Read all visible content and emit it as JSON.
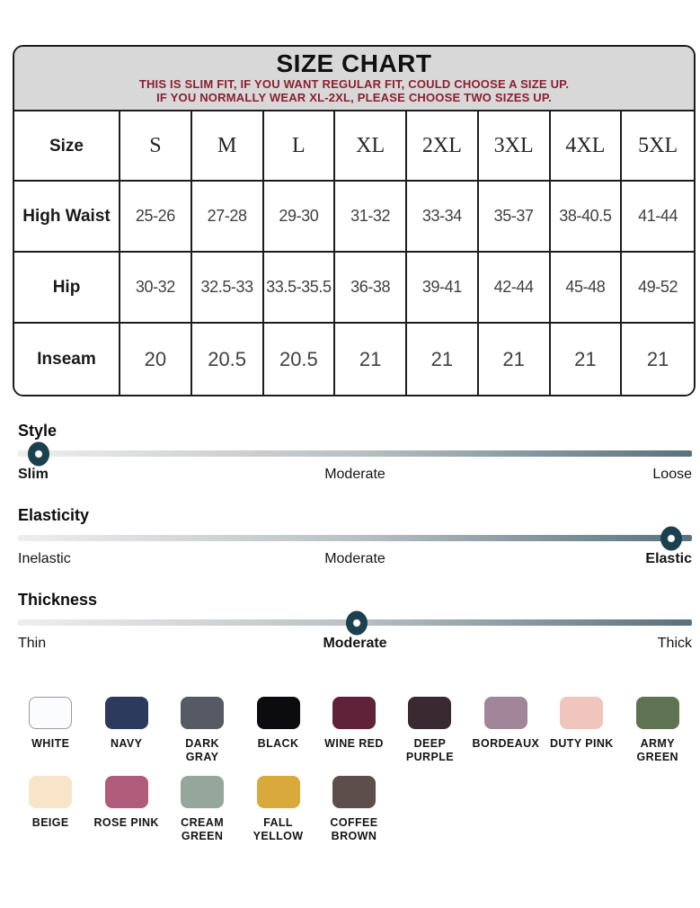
{
  "header": {
    "title": "SIZE CHART",
    "note_line1": "THIS IS SLIM FIT, IF YOU WANT REGULAR FIT, COULD CHOOSE A SIZE UP.",
    "note_line2": "IF YOU NORMALLY WEAR XL-2XL, PLEASE CHOOSE TWO SIZES UP."
  },
  "size_table": {
    "header_label": "Size",
    "sizes": [
      "S",
      "M",
      "L",
      "XL",
      "2XL",
      "3XL",
      "4XL",
      "5XL"
    ],
    "rows": [
      {
        "label": "High Waist",
        "values": [
          "25-26",
          "27-28",
          "29-30",
          "31-32",
          "33-34",
          "35-37",
          "38-40.5",
          "41-44"
        ]
      },
      {
        "label": "Hip",
        "values": [
          "30-32",
          "32.5-33",
          "33.5-35.5",
          "36-38",
          "39-41",
          "42-44",
          "45-48",
          "49-52"
        ]
      },
      {
        "label": "Inseam",
        "values": [
          "20",
          "20.5",
          "20.5",
          "21",
          "21",
          "21",
          "21",
          "21"
        ]
      }
    ]
  },
  "sliders": [
    {
      "name": "Style",
      "labels": [
        "Slim",
        "Moderate",
        "Loose"
      ],
      "active_index": 0,
      "knob_pct": 3
    },
    {
      "name": "Elasticity",
      "labels": [
        "Inelastic",
        "Moderate",
        "Elastic"
      ],
      "active_index": 2,
      "knob_pct": 96.9
    },
    {
      "name": "Thickness",
      "labels": [
        "Thin",
        "Moderate",
        "Thick"
      ],
      "active_index": 1,
      "knob_pct": 50.3
    }
  ],
  "swatches": {
    "row1": [
      {
        "label": "WHITE",
        "hex": "#fafcfd",
        "border": "#9a9a9a"
      },
      {
        "label": "NAVY",
        "hex": "#2c3a5d"
      },
      {
        "label": "DARK GRAY",
        "hex": "#575964"
      },
      {
        "label": "BLACK",
        "hex": "#0c0c0e"
      },
      {
        "label": "WINE RED",
        "hex": "#5f2239"
      },
      {
        "label": "DEEP PURPLE",
        "hex": "#392a32"
      },
      {
        "label": "BORDEAUX",
        "hex": "#a1869a"
      },
      {
        "label": "DUTY PINK",
        "hex": "#efc5bd"
      },
      {
        "label": "ARMY GREEN",
        "hex": "#5e7351"
      }
    ],
    "row2": [
      {
        "label": "BEIGE",
        "hex": "#f8e4c8"
      },
      {
        "label": "ROSE PINK",
        "hex": "#b15c7b"
      },
      {
        "label": "CREAM GREEN",
        "hex": "#95a79a"
      },
      {
        "label": "FALL YELLOW",
        "hex": "#d9a93c"
      },
      {
        "label": "COFFEE BROWN",
        "hex": "#5d4d4b"
      }
    ]
  },
  "theme": {
    "note_red": "#8d1f30",
    "header_bg": "#d8d8d8",
    "table_border": "#1c1c1c",
    "knob_color": "#1b404e",
    "track_light": "#eeeeee",
    "track_dark": "#5a717e"
  }
}
